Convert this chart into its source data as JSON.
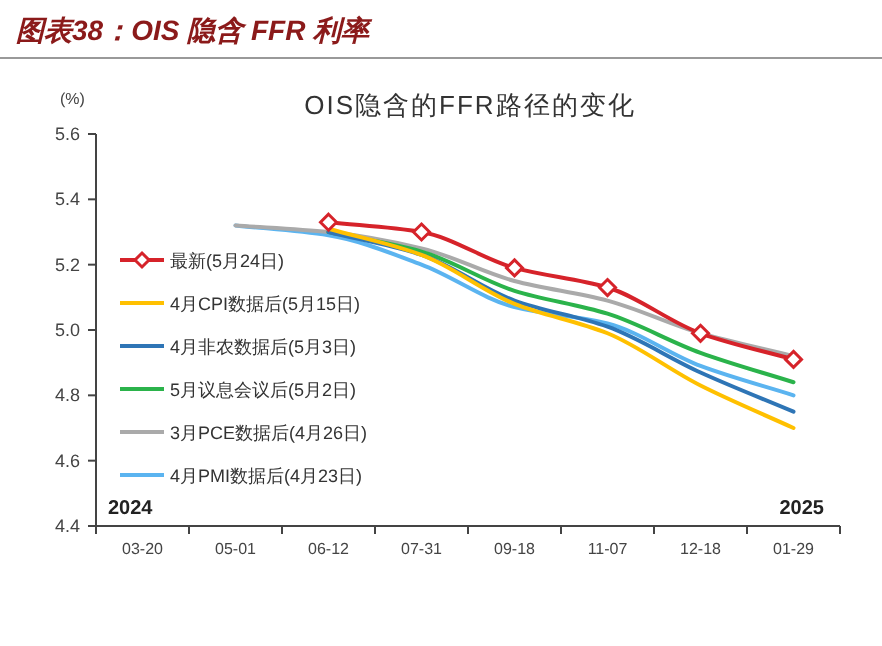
{
  "chart_data": {
    "type": "line",
    "title": "图表38：OIS 隐含 FFR 利率",
    "subtitle": "OIS隐含的FFR路径的变化",
    "ylabel": "(%)",
    "categories": [
      "03-20",
      "05-01",
      "06-12",
      "07-31",
      "09-18",
      "11-07",
      "12-18",
      "01-29"
    ],
    "series": [
      {
        "name": "最新(5月24日)",
        "color": "#d6232a",
        "marker": "diamond",
        "values": [
          null,
          null,
          5.33,
          5.3,
          5.19,
          5.13,
          4.99,
          4.91
        ]
      },
      {
        "name": "4月CPI数据后(5月15日)",
        "color": "#ffc000",
        "values": [
          null,
          null,
          5.31,
          5.23,
          5.08,
          4.99,
          4.83,
          4.7
        ]
      },
      {
        "name": "4月非农数据后(5月3日)",
        "color": "#2e75b6",
        "values": [
          null,
          null,
          5.3,
          5.23,
          5.09,
          5.01,
          4.87,
          4.75
        ]
      },
      {
        "name": "5月议息会议后(5月2日)",
        "color": "#2bb34b",
        "values": [
          null,
          null,
          5.3,
          5.24,
          5.12,
          5.05,
          4.93,
          4.84
        ]
      },
      {
        "name": "3月PCE数据后(4月26日)",
        "color": "#aaaaaa",
        "values": [
          null,
          5.32,
          5.3,
          5.25,
          5.15,
          5.09,
          4.99,
          4.92
        ]
      },
      {
        "name": "4月PMI数据后(4月23日)",
        "color": "#5bb4f0",
        "values": [
          null,
          5.32,
          5.29,
          5.2,
          5.07,
          5.02,
          4.89,
          4.8
        ]
      }
    ],
    "ylim": [
      4.4,
      5.6
    ],
    "yticks": [
      {
        "value": 4.4,
        "label": "4.4"
      },
      {
        "value": 4.6,
        "label": "4.6"
      },
      {
        "value": 4.8,
        "label": "4.8"
      },
      {
        "value": 5.0,
        "label": "5.0"
      },
      {
        "value": 5.2,
        "label": "5.2"
      },
      {
        "value": 5.4,
        "label": "5.4"
      },
      {
        "value": 5.6,
        "label": "5.6"
      }
    ],
    "annotations": [
      "2024",
      "2025"
    ],
    "legend": "left",
    "grid": false
  }
}
